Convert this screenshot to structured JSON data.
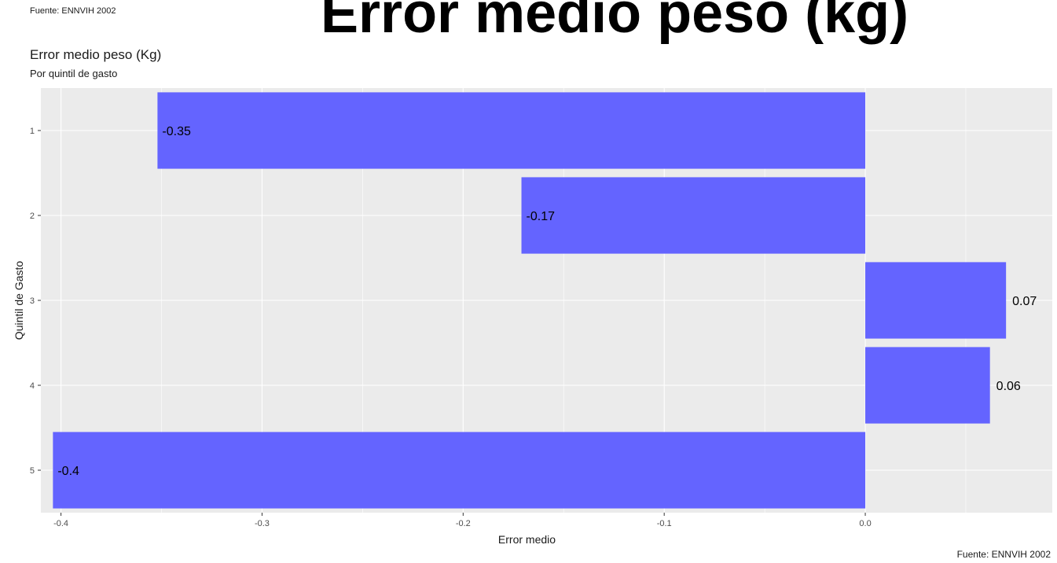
{
  "header": {
    "top_source": "Fuente: ENNVIH 2002",
    "big_title": "Error medio peso (kg)"
  },
  "chart_data": {
    "type": "bar",
    "orientation": "horizontal",
    "title": "Error medio peso (Kg)",
    "subtitle": "Por quintil de gasto",
    "xlabel": "Error medio",
    "ylabel": "Quintil de Gasto",
    "caption": "Fuente: ENNVIH 2002",
    "categories": [
      "1",
      "2",
      "3",
      "4",
      "5"
    ],
    "values": [
      -0.352,
      -0.171,
      0.07,
      0.062,
      -0.404
    ],
    "data_labels": [
      "-0.35",
      "-0.17",
      "0.07",
      "0.06",
      "-0.4"
    ],
    "xlim": [
      -0.41,
      0.093
    ],
    "xticks": [
      -0.4,
      -0.3,
      -0.2,
      -0.1,
      0.0
    ],
    "xtick_labels": [
      "-0.4",
      "-0.3",
      "-0.2",
      "-0.1",
      "0.0"
    ],
    "grid": true,
    "colors": {
      "bar": "#6464ff",
      "panel": "#ebebeb",
      "grid": "#ffffff"
    }
  }
}
